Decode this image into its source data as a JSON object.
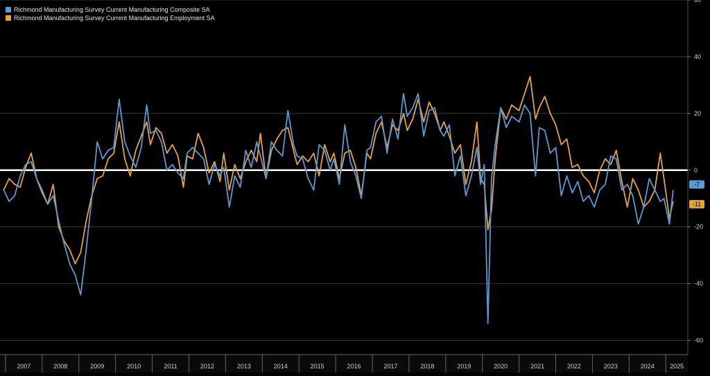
{
  "chart_data": {
    "type": "line",
    "title": "",
    "xlabel": "",
    "ylabel": "",
    "ylim": [
      -65,
      60
    ],
    "y_ticks": [
      60,
      40,
      20,
      0,
      -20,
      -40,
      -60
    ],
    "x_range": [
      2006.85,
      2025.6
    ],
    "x_tick_labels": [
      "2007",
      "2008",
      "2009",
      "2010",
      "2011",
      "2012",
      "2013",
      "2014",
      "2015",
      "2016",
      "2017",
      "2018",
      "2019",
      "2020",
      "2021",
      "2022",
      "2023",
      "2024",
      "2025"
    ],
    "legend": [
      "Richmond Manufacturing Survey Current Manufacturing Composite SA",
      "Richmond Manufacturing Survey Current Manufacturing Employment SA"
    ],
    "legend_position": "top-left",
    "zero_line": true,
    "series": [
      {
        "name": "Richmond Manufacturing Survey Current Manufacturing Composite SA",
        "color": "#5b9bd5",
        "last_label": "-7",
        "points": [
          [
            2006.95,
            -7
          ],
          [
            2007.1,
            -11
          ],
          [
            2007.25,
            -9
          ],
          [
            2007.4,
            -2
          ],
          [
            2007.55,
            2
          ],
          [
            2007.7,
            3
          ],
          [
            2007.85,
            -3
          ],
          [
            2008.0,
            -7
          ],
          [
            2008.15,
            -12
          ],
          [
            2008.3,
            -9
          ],
          [
            2008.45,
            -18
          ],
          [
            2008.6,
            -26
          ],
          [
            2008.75,
            -33
          ],
          [
            2008.9,
            -37
          ],
          [
            2009.05,
            -44
          ],
          [
            2009.2,
            -28
          ],
          [
            2009.35,
            -10
          ],
          [
            2009.5,
            10
          ],
          [
            2009.65,
            4
          ],
          [
            2009.8,
            7
          ],
          [
            2009.95,
            8
          ],
          [
            2010.1,
            25
          ],
          [
            2010.25,
            10
          ],
          [
            2010.4,
            5
          ],
          [
            2010.55,
            1
          ],
          [
            2010.7,
            8
          ],
          [
            2010.85,
            23
          ],
          [
            2010.95,
            13
          ],
          [
            2011.1,
            14
          ],
          [
            2011.25,
            10
          ],
          [
            2011.4,
            0
          ],
          [
            2011.55,
            2
          ],
          [
            2011.7,
            -1
          ],
          [
            2011.85,
            -3
          ],
          [
            2011.95,
            6
          ],
          [
            2012.1,
            8
          ],
          [
            2012.25,
            6
          ],
          [
            2012.4,
            4
          ],
          [
            2012.55,
            -5
          ],
          [
            2012.7,
            2
          ],
          [
            2012.85,
            -2
          ],
          [
            2012.95,
            1
          ],
          [
            2013.1,
            -13
          ],
          [
            2013.25,
            -2
          ],
          [
            2013.4,
            -6
          ],
          [
            2013.55,
            7
          ],
          [
            2013.7,
            1
          ],
          [
            2013.85,
            10
          ],
          [
            2013.95,
            5
          ],
          [
            2014.1,
            -3
          ],
          [
            2014.25,
            10
          ],
          [
            2014.4,
            7
          ],
          [
            2014.55,
            5
          ],
          [
            2014.7,
            21
          ],
          [
            2014.85,
            9
          ],
          [
            2014.95,
            5
          ],
          [
            2015.1,
            4
          ],
          [
            2015.25,
            -3
          ],
          [
            2015.4,
            -7
          ],
          [
            2015.55,
            9
          ],
          [
            2015.7,
            7
          ],
          [
            2015.85,
            0
          ],
          [
            2015.95,
            4
          ],
          [
            2016.1,
            -5
          ],
          [
            2016.25,
            16
          ],
          [
            2016.4,
            3
          ],
          [
            2016.55,
            -2
          ],
          [
            2016.7,
            -10
          ],
          [
            2016.85,
            7
          ],
          [
            2016.95,
            8
          ],
          [
            2017.1,
            17
          ],
          [
            2017.25,
            19
          ],
          [
            2017.4,
            6
          ],
          [
            2017.55,
            18
          ],
          [
            2017.7,
            11
          ],
          [
            2017.85,
            27
          ],
          [
            2017.95,
            19
          ],
          [
            2018.1,
            22
          ],
          [
            2018.25,
            27
          ],
          [
            2018.4,
            12
          ],
          [
            2018.55,
            21
          ],
          [
            2018.7,
            22
          ],
          [
            2018.85,
            14
          ],
          [
            2018.95,
            12
          ],
          [
            2019.1,
            16
          ],
          [
            2019.25,
            -2
          ],
          [
            2019.4,
            5
          ],
          [
            2019.55,
            -9
          ],
          [
            2019.7,
            -2
          ],
          [
            2019.85,
            8
          ],
          [
            2019.95,
            -5
          ],
          [
            2020.05,
            2
          ],
          [
            2020.15,
            -54
          ],
          [
            2020.25,
            -3
          ],
          [
            2020.35,
            9
          ],
          [
            2020.5,
            22
          ],
          [
            2020.65,
            15
          ],
          [
            2020.8,
            19
          ],
          [
            2021.0,
            17
          ],
          [
            2021.15,
            23
          ],
          [
            2021.3,
            20
          ],
          [
            2021.45,
            -2
          ],
          [
            2021.55,
            15
          ],
          [
            2021.7,
            14
          ],
          [
            2021.85,
            6
          ],
          [
            2022.0,
            8
          ],
          [
            2022.15,
            -9
          ],
          [
            2022.3,
            -2
          ],
          [
            2022.45,
            -8
          ],
          [
            2022.6,
            -4
          ],
          [
            2022.75,
            -11
          ],
          [
            2022.9,
            -9
          ],
          [
            2023.05,
            -13
          ],
          [
            2023.2,
            -7
          ],
          [
            2023.35,
            -5
          ],
          [
            2023.5,
            5
          ],
          [
            2023.65,
            4
          ],
          [
            2023.8,
            -7
          ],
          [
            2023.95,
            -5
          ],
          [
            2024.1,
            -9
          ],
          [
            2024.25,
            -19
          ],
          [
            2024.4,
            -13
          ],
          [
            2024.55,
            -3
          ],
          [
            2024.7,
            -7
          ],
          [
            2024.85,
            -11
          ],
          [
            2024.95,
            -10
          ],
          [
            2025.1,
            -19
          ],
          [
            2025.2,
            -7
          ]
        ]
      },
      {
        "name": "Richmond Manufacturing Survey Current Manufacturing Employment SA",
        "color": "#e8a33b",
        "last_label": "-11",
        "points": [
          [
            2006.95,
            -7
          ],
          [
            2007.1,
            -3
          ],
          [
            2007.25,
            -5
          ],
          [
            2007.4,
            -6
          ],
          [
            2007.55,
            1
          ],
          [
            2007.7,
            6
          ],
          [
            2007.85,
            -3
          ],
          [
            2008.0,
            -8
          ],
          [
            2008.15,
            -12
          ],
          [
            2008.3,
            -5
          ],
          [
            2008.45,
            -20
          ],
          [
            2008.6,
            -25
          ],
          [
            2008.75,
            -28
          ],
          [
            2008.9,
            -33
          ],
          [
            2009.05,
            -29
          ],
          [
            2009.2,
            -18
          ],
          [
            2009.35,
            -9
          ],
          [
            2009.5,
            -3
          ],
          [
            2009.65,
            -2
          ],
          [
            2009.8,
            4
          ],
          [
            2009.95,
            6
          ],
          [
            2010.1,
            17
          ],
          [
            2010.25,
            4
          ],
          [
            2010.4,
            -2
          ],
          [
            2010.55,
            7
          ],
          [
            2010.7,
            12
          ],
          [
            2010.85,
            17
          ],
          [
            2010.95,
            9
          ],
          [
            2011.1,
            15
          ],
          [
            2011.25,
            13
          ],
          [
            2011.4,
            6
          ],
          [
            2011.55,
            9
          ],
          [
            2011.7,
            5
          ],
          [
            2011.85,
            -6
          ],
          [
            2011.95,
            5
          ],
          [
            2012.1,
            4
          ],
          [
            2012.25,
            13
          ],
          [
            2012.4,
            8
          ],
          [
            2012.55,
            -1
          ],
          [
            2012.7,
            3
          ],
          [
            2012.85,
            -4
          ],
          [
            2012.95,
            6
          ],
          [
            2013.1,
            -7
          ],
          [
            2013.25,
            2
          ],
          [
            2013.4,
            -3
          ],
          [
            2013.55,
            3
          ],
          [
            2013.7,
            7
          ],
          [
            2013.85,
            3
          ],
          [
            2013.95,
            13
          ],
          [
            2014.1,
            -3
          ],
          [
            2014.25,
            7
          ],
          [
            2014.4,
            11
          ],
          [
            2014.55,
            14
          ],
          [
            2014.7,
            15
          ],
          [
            2014.85,
            7
          ],
          [
            2014.95,
            2
          ],
          [
            2015.1,
            5
          ],
          [
            2015.25,
            3
          ],
          [
            2015.4,
            6
          ],
          [
            2015.55,
            -2
          ],
          [
            2015.7,
            9
          ],
          [
            2015.85,
            3
          ],
          [
            2015.95,
            6
          ],
          [
            2016.1,
            -3
          ],
          [
            2016.25,
            6
          ],
          [
            2016.4,
            7
          ],
          [
            2016.55,
            1
          ],
          [
            2016.7,
            -9
          ],
          [
            2016.85,
            6
          ],
          [
            2016.95,
            4
          ],
          [
            2017.1,
            13
          ],
          [
            2017.25,
            17
          ],
          [
            2017.4,
            8
          ],
          [
            2017.55,
            16
          ],
          [
            2017.7,
            14
          ],
          [
            2017.85,
            20
          ],
          [
            2017.95,
            14
          ],
          [
            2018.1,
            18
          ],
          [
            2018.25,
            25
          ],
          [
            2018.4,
            17
          ],
          [
            2018.55,
            24
          ],
          [
            2018.7,
            20
          ],
          [
            2018.85,
            14
          ],
          [
            2018.95,
            17
          ],
          [
            2019.1,
            12
          ],
          [
            2019.25,
            6
          ],
          [
            2019.4,
            9
          ],
          [
            2019.55,
            -5
          ],
          [
            2019.7,
            3
          ],
          [
            2019.85,
            17
          ],
          [
            2019.95,
            -3
          ],
          [
            2020.05,
            -5
          ],
          [
            2020.15,
            -21
          ],
          [
            2020.25,
            -14
          ],
          [
            2020.35,
            4
          ],
          [
            2020.5,
            22
          ],
          [
            2020.65,
            18
          ],
          [
            2020.8,
            23
          ],
          [
            2021.0,
            21
          ],
          [
            2021.15,
            27
          ],
          [
            2021.3,
            33
          ],
          [
            2021.45,
            18
          ],
          [
            2021.55,
            22
          ],
          [
            2021.7,
            26
          ],
          [
            2021.85,
            20
          ],
          [
            2022.0,
            16
          ],
          [
            2022.15,
            9
          ],
          [
            2022.3,
            11
          ],
          [
            2022.45,
            1
          ],
          [
            2022.6,
            2
          ],
          [
            2022.75,
            -2
          ],
          [
            2022.9,
            -4
          ],
          [
            2023.05,
            -8
          ],
          [
            2023.2,
            0
          ],
          [
            2023.35,
            4
          ],
          [
            2023.5,
            2
          ],
          [
            2023.65,
            7
          ],
          [
            2023.8,
            -4
          ],
          [
            2023.95,
            -13
          ],
          [
            2024.1,
            -3
          ],
          [
            2024.25,
            -7
          ],
          [
            2024.4,
            -13
          ],
          [
            2024.55,
            -11
          ],
          [
            2024.7,
            -7
          ],
          [
            2024.85,
            6
          ],
          [
            2024.95,
            -3
          ],
          [
            2025.1,
            -17
          ],
          [
            2025.2,
            -11
          ]
        ]
      }
    ]
  }
}
